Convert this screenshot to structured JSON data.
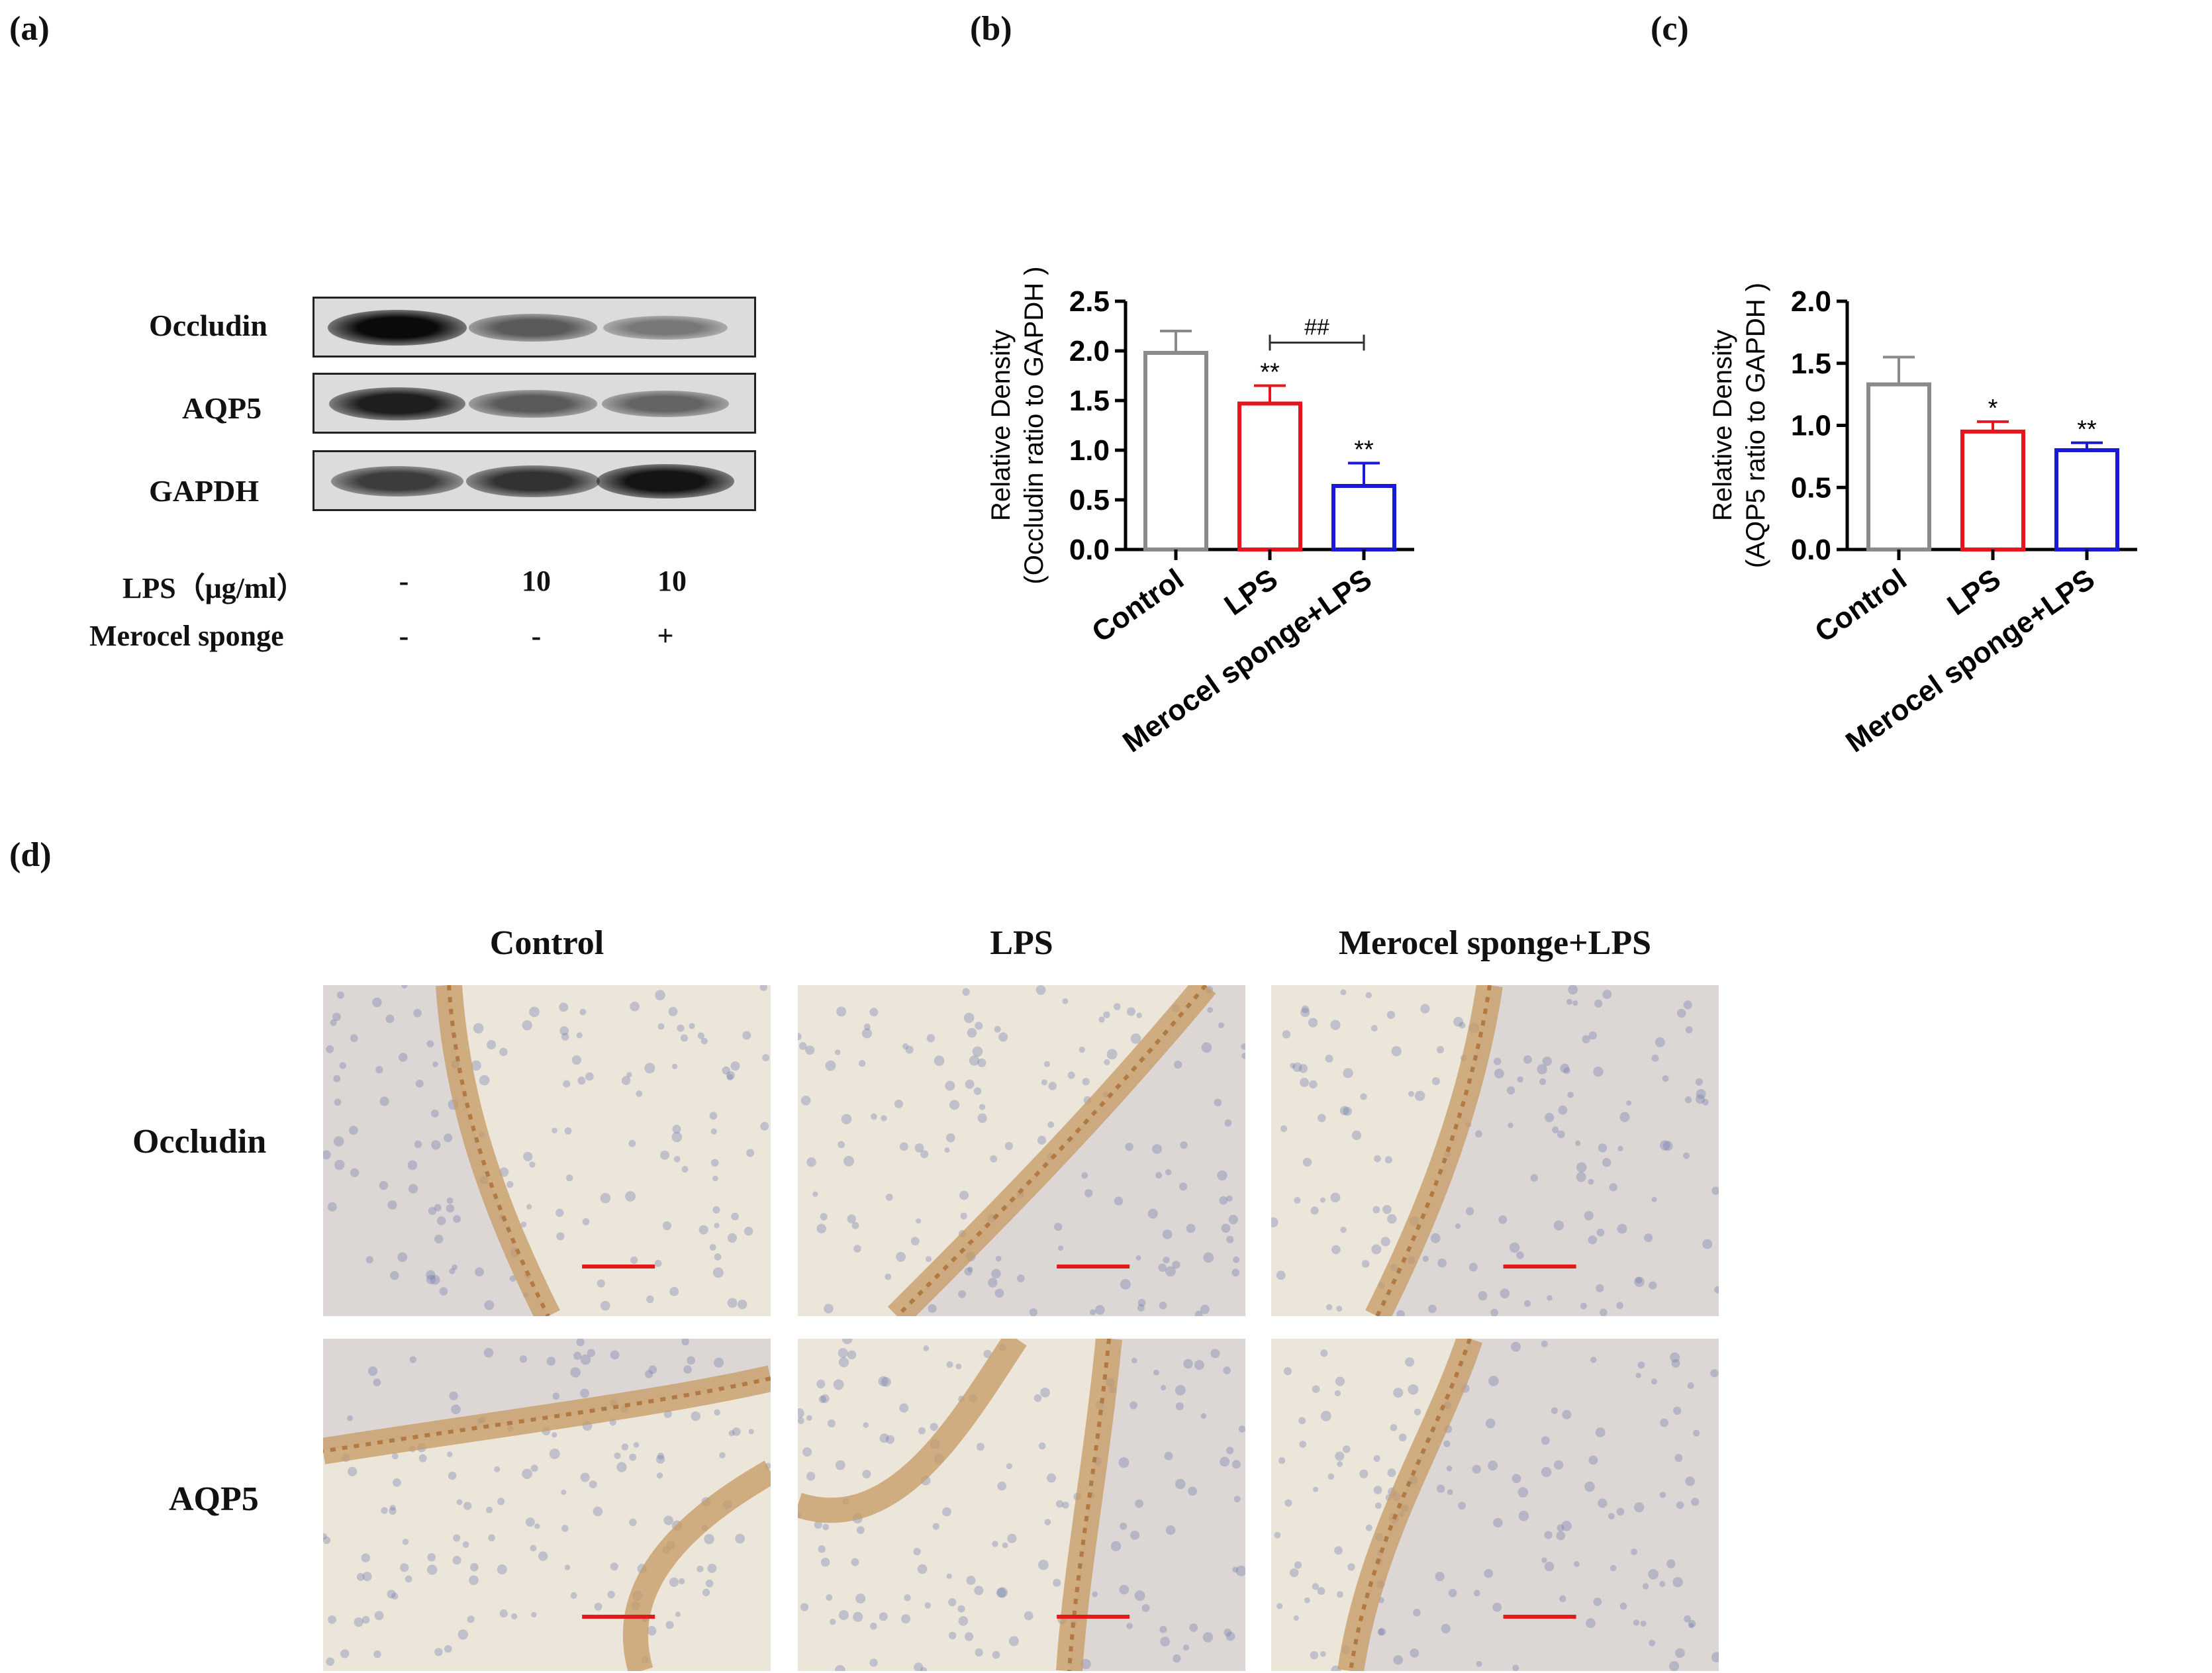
{
  "panels": {
    "a": "(a)",
    "b": "(b)",
    "c": "(c)",
    "d": "(d)"
  },
  "western_blot": {
    "rows": [
      {
        "label": "Occludin",
        "intensity": [
          1.0,
          0.6,
          0.45
        ]
      },
      {
        "label": "AQP5",
        "intensity": [
          0.9,
          0.6,
          0.55
        ]
      },
      {
        "label": "GAPDH",
        "intensity": [
          0.75,
          0.8,
          0.95
        ]
      }
    ],
    "conditions": [
      {
        "label": "LPS（μg/ml）",
        "values": [
          "-",
          "10",
          "10"
        ]
      },
      {
        "label": "Merocel sponge",
        "values": [
          "-",
          "-",
          "+"
        ]
      }
    ]
  },
  "chart_data": [
    {
      "type": "bar",
      "categories": [
        "Control",
        "LPS",
        "Merocel sponge+LPS"
      ],
      "values": [
        1.98,
        1.47,
        0.64
      ],
      "errors": [
        0.22,
        0.18,
        0.23
      ],
      "colors": [
        "#8a8a8a",
        "#e8141e",
        "#1a1ad6"
      ],
      "significance": [
        "",
        "**",
        "**"
      ],
      "comparison": {
        "from": 1,
        "to": 2,
        "label": "##"
      },
      "ylabel_line1": "Relative Density",
      "ylabel_line2": "(Occludin ratio to GAPDH )",
      "ylim": [
        0,
        2.5
      ],
      "yticks": [
        "0.0",
        "0.5",
        "1.0",
        "1.5",
        "2.0",
        "2.5"
      ]
    },
    {
      "type": "bar",
      "categories": [
        "Control",
        "LPS",
        "Merocel sponge+LPS"
      ],
      "values": [
        1.33,
        0.95,
        0.8
      ],
      "errors": [
        0.22,
        0.08,
        0.06
      ],
      "colors": [
        "#8a8a8a",
        "#e8141e",
        "#1a1ad6"
      ],
      "significance": [
        "",
        "*",
        "**"
      ],
      "ylabel_line1": "Relative Density",
      "ylabel_line2": "(AQP5 ratio to GAPDH )",
      "ylim": [
        0,
        2.0
      ],
      "yticks": [
        "0.0",
        "0.5",
        "1.0",
        "1.5",
        "2.0"
      ]
    }
  ],
  "ihc": {
    "columns": [
      "Control",
      "LPS",
      "Merocel sponge+LPS"
    ],
    "rows": [
      "Occludin",
      "AQP5"
    ]
  }
}
